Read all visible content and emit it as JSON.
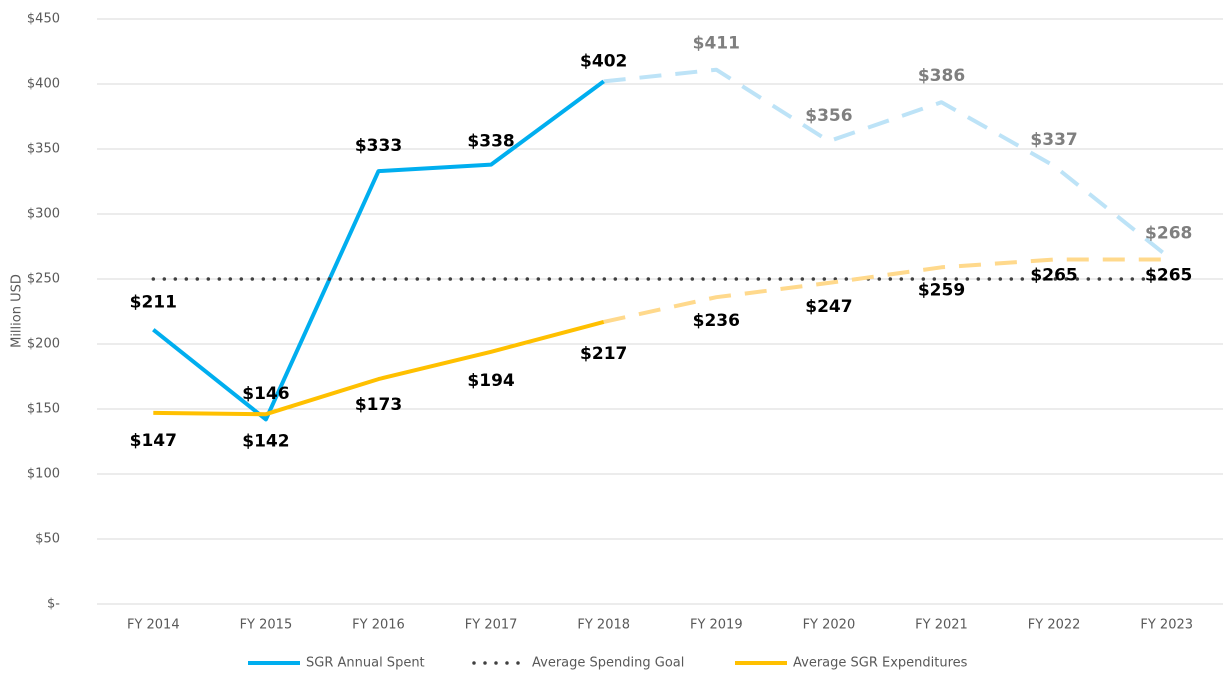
{
  "chart_data": {
    "type": "line",
    "y_axis_label": "Million USD",
    "categories": [
      "FY 2014",
      "FY 2015",
      "FY 2016",
      "FY 2017",
      "FY 2018",
      "FY 2019",
      "FY 2020",
      "FY 2021",
      "FY 2022",
      "FY 2023"
    ],
    "ylim": [
      0,
      450
    ],
    "yticks": [
      {
        "value": 0,
        "label": "$-"
      },
      {
        "value": 50,
        "label": "$50"
      },
      {
        "value": 100,
        "label": "$100"
      },
      {
        "value": 150,
        "label": "$150"
      },
      {
        "value": 200,
        "label": "$200"
      },
      {
        "value": 250,
        "label": "$250"
      },
      {
        "value": 300,
        "label": "$300"
      },
      {
        "value": 350,
        "label": "$350"
      },
      {
        "value": 400,
        "label": "$400"
      },
      {
        "value": 450,
        "label": "$450"
      }
    ],
    "grid": true,
    "legend": "bottom",
    "series": [
      {
        "name": "SGR Annual Spent",
        "color": "#00aeef",
        "projected_color": "#bde3f7",
        "style": "solid",
        "values": [
          211,
          142,
          333,
          338,
          402,
          null,
          null,
          null,
          null,
          null
        ],
        "value_labels": [
          "$211",
          "$142",
          "$333",
          "$338",
          "$402",
          null,
          null,
          null,
          null,
          null
        ],
        "projected_values": [
          null,
          null,
          null,
          null,
          402,
          411,
          356,
          386,
          337,
          268
        ],
        "projected_value_labels": [
          null,
          null,
          null,
          null,
          null,
          "$411",
          "$356",
          "$386",
          "$337",
          "$268"
        ]
      },
      {
        "name": "Average Spending Goal",
        "color": "#404040",
        "style": "dotted",
        "values": [
          250,
          250,
          250,
          250,
          250,
          250,
          250,
          250,
          250,
          250
        ]
      },
      {
        "name": "Average SGR Expenditures",
        "color": "#ffc000",
        "projected_color": "#ffd98c",
        "style": "solid",
        "values": [
          147,
          146,
          173,
          194,
          217,
          null,
          null,
          null,
          null,
          null
        ],
        "value_labels": [
          "$147",
          "$146",
          "$173",
          "$194",
          "$217",
          null,
          null,
          null,
          null,
          null
        ],
        "projected_values": [
          null,
          null,
          null,
          null,
          217,
          236,
          247,
          259,
          265,
          265
        ],
        "projected_value_labels": [
          null,
          null,
          null,
          null,
          null,
          "$236",
          "$247",
          "$259",
          "$265",
          "$265"
        ]
      }
    ]
  }
}
